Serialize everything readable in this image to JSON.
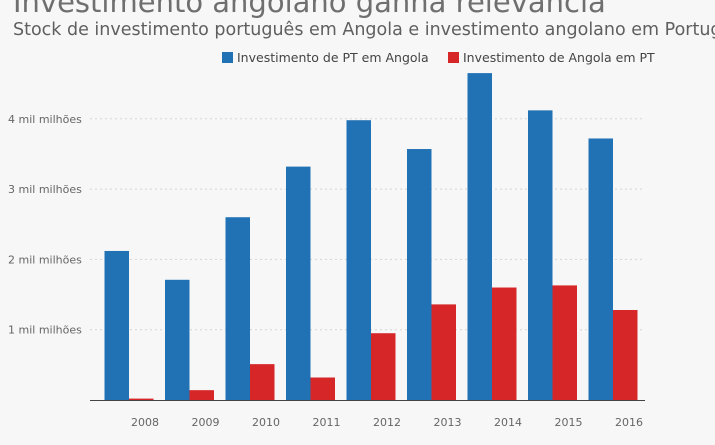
{
  "chart_data": {
    "type": "bar",
    "title": "Investimento angolano ganha relevância",
    "subtitle": "Stock de investimento português em Angola e investimento angolano em Portugal",
    "categories": [
      "2008",
      "2009",
      "2010",
      "2011",
      "2012",
      "2013",
      "2014",
      "2015",
      "2016"
    ],
    "series": [
      {
        "name": "Investimento de PT em Angola",
        "color": "#2171b5",
        "values": [
          2120,
          1710,
          2600,
          3320,
          3980,
          3570,
          4650,
          4120,
          3720
        ]
      },
      {
        "name": "Investimento de Angola em PT",
        "color": "#d62628",
        "values": [
          20,
          140,
          510,
          320,
          950,
          1360,
          1600,
          1630,
          1280
        ]
      }
    ],
    "y_ticks": [
      {
        "value": 1000,
        "label": "1 mil milhões"
      },
      {
        "value": 2000,
        "label": "2 mil milhões"
      },
      {
        "value": 3000,
        "label": "3 mil milhões"
      },
      {
        "value": 4000,
        "label": "4 mil milhões"
      }
    ],
    "ylim": [
      0,
      4700
    ],
    "grid": true,
    "legend_position": "top"
  }
}
